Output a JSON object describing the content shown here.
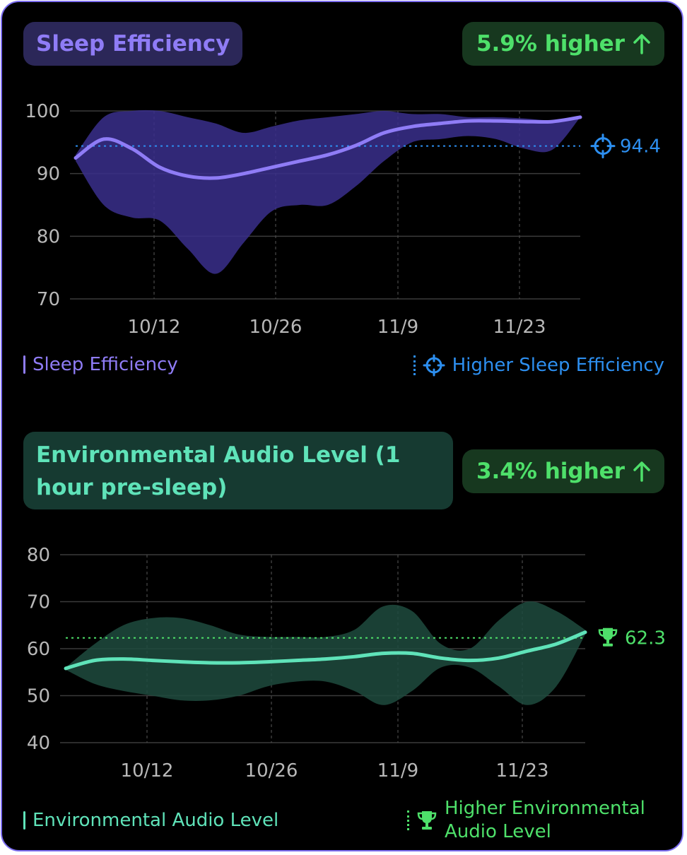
{
  "colors": {
    "purple": "#8f7cf6",
    "purple_band": "#3a2f8c",
    "blue": "#2d8ff0",
    "teal": "#5fe3b9",
    "teal_band": "#1f4b3e",
    "green": "#4ee06a",
    "grid": "#3b3b3b",
    "axis_text": "#b8b8b8"
  },
  "panel1": {
    "title": "Sleep Efficiency",
    "badge": "5.9% higher",
    "badge_icon": "arrow-up-icon",
    "legend_series": "Sleep Efficiency",
    "legend_target": "Higher Sleep Efficiency",
    "target_icon": "crosshair-icon"
  },
  "panel2": {
    "title": "Environmental Audio Level (1 hour pre-sleep)",
    "badge": "3.4% higher",
    "badge_icon": "arrow-up-icon",
    "legend_series": "Environmental Audio Level",
    "legend_target": "Higher Environmental Audio Level",
    "target_icon": "trophy-icon"
  },
  "chart_data": [
    {
      "type": "line",
      "title": "Sleep Efficiency",
      "x_ticks": [
        "10/12",
        "10/26",
        "11/9",
        "11/23"
      ],
      "x": [
        0,
        5,
        10,
        15,
        20,
        25,
        30,
        35,
        40,
        45,
        50,
        55,
        60,
        65,
        70,
        75,
        80,
        85,
        90
      ],
      "series": [
        {
          "name": "Sleep Efficiency",
          "values": [
            92.5,
            95.5,
            94,
            91,
            89.6,
            89.3,
            90,
            91,
            92,
            93,
            94.5,
            96.5,
            97.5,
            98,
            98.4,
            98.4,
            98.3,
            98.3,
            99
          ],
          "lower": [
            92,
            85,
            83,
            82.5,
            78,
            74,
            79,
            84,
            85,
            85,
            88,
            92,
            95,
            95.5,
            96,
            95.5,
            94,
            93.8,
            99
          ],
          "upper": [
            93,
            99,
            100,
            100,
            99,
            98,
            96.5,
            97.5,
            98.5,
            99,
            99.5,
            100,
            99.5,
            99.5,
            99,
            99,
            98.8,
            98.5,
            99
          ]
        }
      ],
      "reference": {
        "name": "Higher Sleep Efficiency",
        "value": 94.4,
        "label": "94.4"
      },
      "ylim": [
        70,
        100
      ],
      "y_ticks": [
        100,
        90,
        80,
        70
      ],
      "grid": true,
      "legend": "bottom"
    },
    {
      "type": "line",
      "title": "Environmental Audio Level (1 hour pre-sleep)",
      "x_ticks": [
        "10/12",
        "10/26",
        "11/9",
        "11/23"
      ],
      "x": [
        0,
        5,
        10,
        15,
        20,
        25,
        30,
        35,
        40,
        45,
        50,
        55,
        60,
        65,
        70,
        75,
        80,
        85,
        90
      ],
      "series": [
        {
          "name": "Environmental Audio Level",
          "values": [
            55.8,
            57.5,
            57.8,
            57.5,
            57.2,
            57,
            57,
            57.2,
            57.5,
            57.8,
            58.3,
            59,
            59,
            58,
            57.5,
            58,
            59.5,
            61,
            63.5
          ],
          "lower": [
            55.5,
            52.5,
            51,
            50,
            49,
            49,
            50,
            52,
            53,
            53,
            51,
            48,
            51,
            56,
            56,
            52,
            48,
            52,
            63
          ],
          "upper": [
            56,
            61,
            65,
            66.5,
            66.5,
            65,
            63,
            62.5,
            62.5,
            62.5,
            64,
            69,
            68,
            61,
            60,
            66,
            70,
            68,
            64
          ]
        }
      ],
      "reference": {
        "name": "Higher Environmental Audio Level",
        "value": 62.3,
        "label": "62.3"
      },
      "ylim": [
        40,
        80
      ],
      "y_ticks": [
        80,
        70,
        60,
        50,
        40
      ],
      "grid": true,
      "legend": "bottom"
    }
  ]
}
